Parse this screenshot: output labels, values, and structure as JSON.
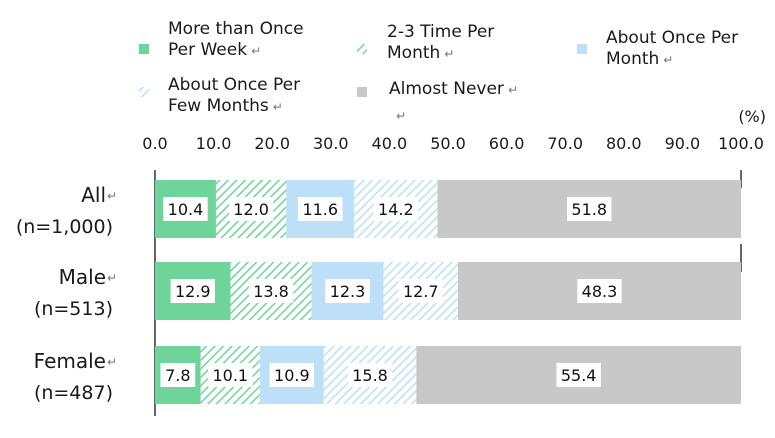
{
  "chart_data": {
    "type": "bar",
    "orientation": "horizontal",
    "stacked": true,
    "unit_label": "(%)",
    "xlim": [
      0,
      100
    ],
    "x_ticks": [
      "0.0",
      "10.0",
      "20.0",
      "30.0",
      "40.0",
      "50.0",
      "60.0",
      "70.0",
      "80.0",
      "90.0",
      "100.0"
    ],
    "categories": [
      {
        "name": "All",
        "sub": "(n=1,000)"
      },
      {
        "name": "Male",
        "sub": "(n=513)"
      },
      {
        "name": "Female",
        "sub": "(n=487)"
      }
    ],
    "series": [
      {
        "name": "More than Once Per Week",
        "legend_lines": [
          "More than Once",
          "Per Week"
        ],
        "color": "#6fd49a",
        "pattern": "solid",
        "values": [
          10.4,
          12.9,
          7.8
        ]
      },
      {
        "name": "2-3 Time Per Month",
        "legend_lines": [
          "2-3 Time Per",
          "Month"
        ],
        "color": "#6fd49a",
        "pattern": "hatch",
        "values": [
          12.0,
          13.8,
          10.1
        ]
      },
      {
        "name": "About Once Per Month",
        "legend_lines": [
          "About Once Per",
          "Month"
        ],
        "color": "#bde0f8",
        "pattern": "solid",
        "values": [
          11.6,
          12.3,
          10.9
        ]
      },
      {
        "name": "About Once Per Few Months",
        "legend_lines": [
          "About Once Per",
          "Few Months"
        ],
        "color": "#bde0f8",
        "pattern": "hatch",
        "values": [
          14.2,
          12.7,
          15.8
        ]
      },
      {
        "name": "Almost Never",
        "legend_lines": [
          "Almost Never"
        ],
        "color": "#c8c8c8",
        "pattern": "solid",
        "values": [
          51.8,
          48.3,
          55.4
        ]
      }
    ],
    "grid": false,
    "legend_position": "top"
  }
}
